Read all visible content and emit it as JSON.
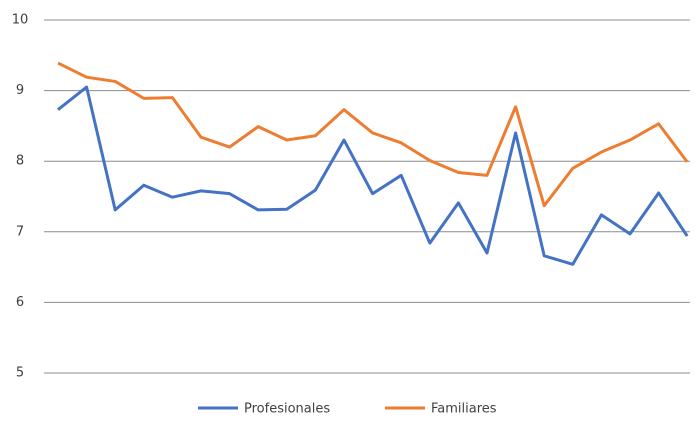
{
  "chart_data": {
    "type": "line",
    "categories": [
      null,
      null,
      null,
      null,
      null,
      null,
      null,
      null,
      null,
      null,
      null,
      null,
      null,
      null,
      null,
      null,
      null,
      null,
      null,
      null,
      null,
      null,
      null
    ],
    "series": [
      {
        "name": "Profesionales",
        "color": "#4472c4",
        "values": [
          8.73,
          9.05,
          7.31,
          7.66,
          7.49,
          7.58,
          7.54,
          7.31,
          7.32,
          7.59,
          8.3,
          7.54,
          7.8,
          6.84,
          7.41,
          6.7,
          8.4,
          6.66,
          6.54,
          7.24,
          6.97,
          7.55,
          6.94
        ]
      },
      {
        "name": "Familiares",
        "color": "#ed7d31",
        "values": [
          9.39,
          9.19,
          9.13,
          8.89,
          8.9,
          8.34,
          8.2,
          8.49,
          8.3,
          8.36,
          8.73,
          8.4,
          8.26,
          8.01,
          7.84,
          7.8,
          8.77,
          7.37,
          7.9,
          8.13,
          8.3,
          8.53,
          7.99
        ]
      }
    ],
    "ylim": [
      5,
      10
    ],
    "yticks": [
      5,
      6,
      7,
      8,
      9,
      10
    ],
    "grid": true,
    "legend": "bottom"
  }
}
